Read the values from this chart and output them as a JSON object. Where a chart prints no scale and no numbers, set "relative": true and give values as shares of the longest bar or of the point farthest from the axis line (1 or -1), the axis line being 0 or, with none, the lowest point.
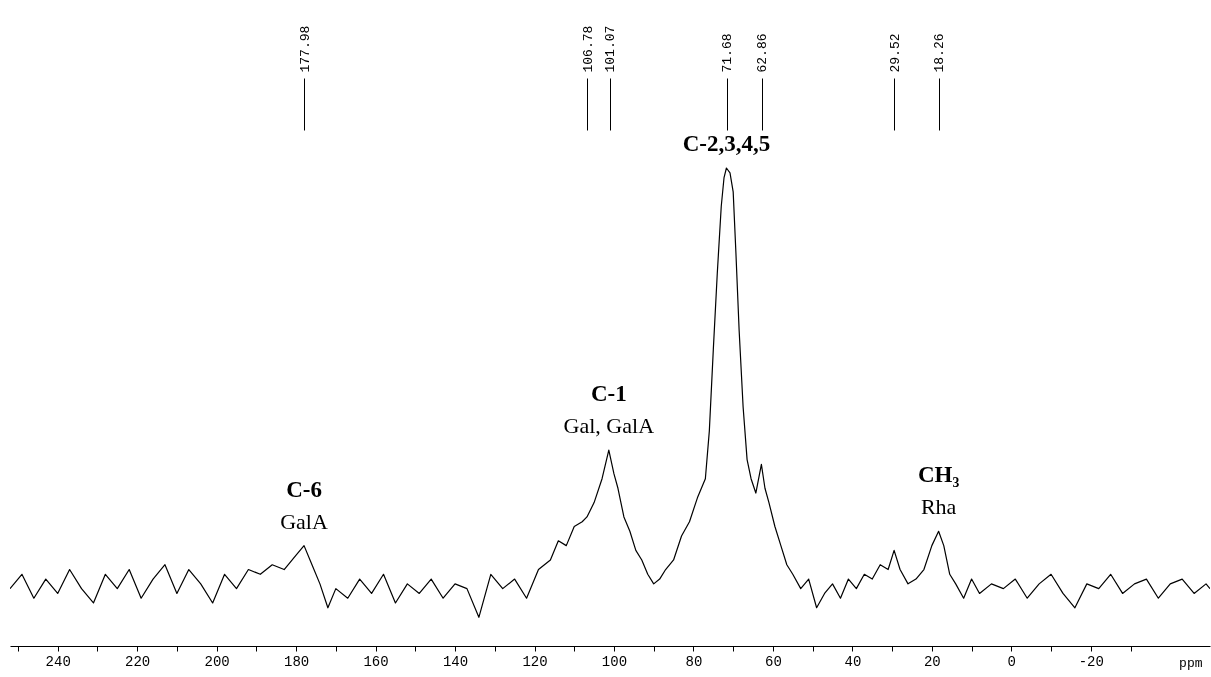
{
  "chart_data": {
    "type": "line",
    "relative": true,
    "color": "#000000",
    "xlabel": "ppm",
    "x": [
      252,
      249,
      246,
      243,
      240,
      237,
      234,
      231,
      228,
      225,
      222,
      219,
      216,
      213,
      210,
      207,
      204,
      201,
      198,
      195,
      192,
      189,
      186,
      183,
      180,
      178,
      176,
      174,
      172,
      170,
      167,
      164,
      161,
      158,
      155,
      152,
      149,
      146,
      143,
      140,
      137,
      134,
      131,
      128,
      125,
      122,
      119,
      116,
      114,
      112,
      110,
      108,
      106.8,
      105,
      103,
      101.3,
      100,
      99,
      97.5,
      96,
      94.5,
      93,
      91.5,
      90,
      88.5,
      87,
      85,
      83,
      81,
      79,
      77,
      76,
      75,
      74,
      73,
      72.3,
      71.7,
      70.8,
      70,
      69.3,
      68.5,
      67.5,
      66.5,
      65.5,
      64.3,
      62.9,
      62,
      61,
      59.5,
      58,
      56.5,
      55,
      53,
      51,
      49,
      47,
      45,
      43,
      41,
      39,
      37,
      35,
      33,
      31,
      29.5,
      28,
      26,
      24,
      22,
      20,
      18.3,
      17,
      15.5,
      14,
      12,
      10,
      8,
      5,
      2,
      -1,
      -4,
      -7,
      -10,
      -13,
      -16,
      -19,
      -22,
      -25,
      -28,
      -31,
      -34,
      -37,
      -40,
      -43,
      -46,
      -49,
      -50
    ],
    "values": [
      0.12,
      0.15,
      0.1,
      0.14,
      0.11,
      0.16,
      0.12,
      0.09,
      0.15,
      0.12,
      0.16,
      0.1,
      0.14,
      0.17,
      0.11,
      0.16,
      0.13,
      0.09,
      0.15,
      0.12,
      0.16,
      0.15,
      0.17,
      0.16,
      0.19,
      0.21,
      0.17,
      0.13,
      0.08,
      0.12,
      0.1,
      0.14,
      0.11,
      0.15,
      0.09,
      0.13,
      0.11,
      0.14,
      0.1,
      0.13,
      0.12,
      0.06,
      0.15,
      0.12,
      0.14,
      0.1,
      0.16,
      0.18,
      0.22,
      0.21,
      0.25,
      0.26,
      0.27,
      0.3,
      0.35,
      0.41,
      0.36,
      0.33,
      0.27,
      0.24,
      0.2,
      0.18,
      0.15,
      0.13,
      0.14,
      0.16,
      0.18,
      0.23,
      0.26,
      0.31,
      0.35,
      0.45,
      0.62,
      0.78,
      0.92,
      0.98,
      1.0,
      0.99,
      0.95,
      0.82,
      0.66,
      0.5,
      0.39,
      0.35,
      0.32,
      0.38,
      0.33,
      0.3,
      0.25,
      0.21,
      0.17,
      0.15,
      0.12,
      0.14,
      0.08,
      0.11,
      0.13,
      0.1,
      0.14,
      0.12,
      0.15,
      0.14,
      0.17,
      0.16,
      0.2,
      0.16,
      0.13,
      0.14,
      0.16,
      0.21,
      0.24,
      0.21,
      0.15,
      0.13,
      0.1,
      0.14,
      0.11,
      0.13,
      0.12,
      0.14,
      0.1,
      0.13,
      0.15,
      0.11,
      0.08,
      0.13,
      0.12,
      0.15,
      0.11,
      0.13,
      0.14,
      0.1,
      0.13,
      0.14,
      0.11,
      0.13,
      0.12
    ],
    "xlim": [
      252,
      -50
    ],
    "xticks": [
      {
        "value": 250,
        "label": null
      },
      240,
      {
        "value": 230,
        "label": null
      },
      220,
      {
        "value": 210,
        "label": null
      },
      200,
      {
        "value": 190,
        "label": null
      },
      180,
      {
        "value": 170,
        "label": null
      },
      160,
      {
        "value": 150,
        "label": null
      },
      140,
      {
        "value": 130,
        "label": null
      },
      120,
      {
        "value": 110,
        "label": null
      },
      100,
      {
        "value": 90,
        "label": null
      },
      80,
      {
        "value": 70,
        "label": null
      },
      60,
      {
        "value": 50,
        "label": null
      },
      40,
      {
        "value": 30,
        "label": null
      },
      20,
      {
        "value": 10,
        "label": null
      },
      0,
      {
        "value": -10,
        "label": null
      },
      -20,
      {
        "value": -30,
        "label": null
      }
    ],
    "x2lim": [
      252,
      -50
    ],
    "x2ticks": [
      177.98,
      106.78,
      101.07,
      71.68,
      62.86,
      29.52,
      18.26
    ],
    "annotations": [
      {
        "text": "C-6",
        "x": 178,
        "y": 0.21
      },
      {
        "text": "GalA",
        "x": 178,
        "y": 0.21
      },
      {
        "text": "C-1",
        "x": 101.3,
        "y": 0.41
      },
      {
        "text": "Gal, GalA",
        "x": 101.3,
        "y": 0.41
      },
      {
        "text": "C-2,3,4,5",
        "x": 71.7,
        "y": 1.0
      },
      {
        "text": "CH₃",
        "x": 18.3,
        "y": 0.24
      },
      {
        "text": "Rha",
        "x": 18.3,
        "y": 0.24
      }
    ]
  }
}
